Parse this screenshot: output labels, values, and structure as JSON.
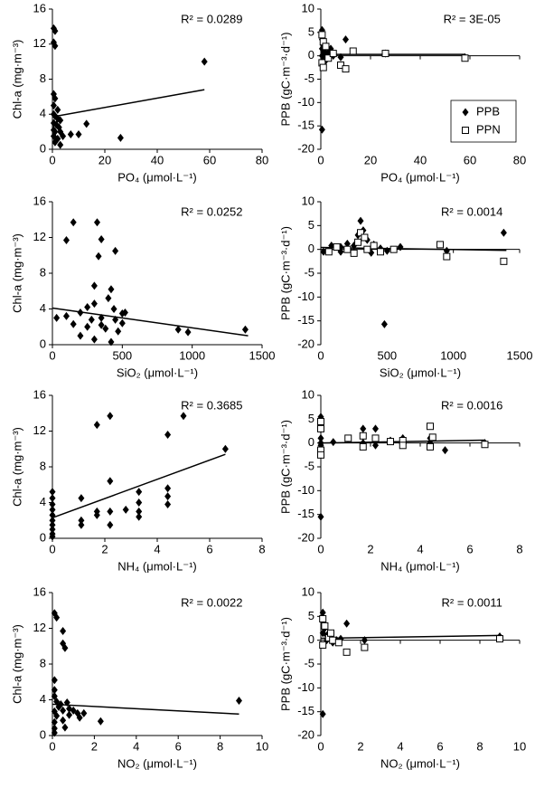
{
  "chart_data": [
    {
      "type": "scatter",
      "ylabel": "Chl-a (mg·m⁻³)",
      "xlabel": "PO₄ (μmol·L⁻¹)",
      "annotation": "R² = 0.0289",
      "xlim": [
        0,
        80
      ],
      "ylim": [
        0,
        16
      ],
      "xticks": [
        0,
        20,
        40,
        60,
        80
      ],
      "yticks": [
        0,
        4,
        8,
        12,
        16
      ],
      "series": [
        {
          "marker": "diamond",
          "color": "#000000",
          "x": [
            0.5,
            1,
            0.5,
            1,
            0.5,
            1,
            0.5,
            2,
            0.5,
            1,
            2,
            3,
            0.5,
            1.5,
            2.5,
            0.5,
            1,
            3,
            0.5,
            2,
            4,
            1,
            3,
            7,
            10,
            13,
            26,
            58
          ],
          "y": [
            13.8,
            13.5,
            12.2,
            11.8,
            6.3,
            5.8,
            5.0,
            4.5,
            4.0,
            3.8,
            3.5,
            3.3,
            3.0,
            2.8,
            2.5,
            2.2,
            2.0,
            2.0,
            1.5,
            1.2,
            1.5,
            0.8,
            0.5,
            1.7,
            1.7,
            2.9,
            1.3,
            10
          ]
        }
      ],
      "trend": {
        "x": [
          0,
          58
        ],
        "y": [
          3.7,
          6.8
        ]
      }
    },
    {
      "type": "scatter",
      "ylabel": "PPB (gC·m⁻³·d⁻¹)",
      "xlabel": "PO₄ (μmol·L⁻¹)",
      "annotation": "R² = 3E-05",
      "xlim": [
        0,
        80
      ],
      "ylim": [
        -20,
        10
      ],
      "xticks": [
        0,
        20,
        40,
        60,
        80
      ],
      "yticks": [
        -20,
        -15,
        -10,
        -5,
        0,
        5,
        10
      ],
      "legend": "lower right",
      "series": [
        {
          "name": "PPB",
          "marker": "diamond",
          "color": "#000000",
          "x": [
            0.5,
            0.5,
            1,
            0.5,
            1,
            2,
            0.5,
            1,
            3,
            4,
            5,
            8,
            10,
            0.5,
            26,
            58,
            2,
            1
          ],
          "y": [
            5.5,
            3.5,
            2.5,
            1.5,
            1,
            0.5,
            0,
            -0.5,
            0.8,
            1.5,
            0,
            -0.3,
            3.5,
            -15.8,
            0.5,
            -0.3,
            -1,
            0.3
          ]
        },
        {
          "name": "PPN",
          "marker": "square",
          "color": "#000000",
          "x": [
            0.5,
            1,
            2,
            0.5,
            3,
            5,
            8,
            10,
            13,
            26,
            58,
            1
          ],
          "y": [
            4.5,
            3,
            2,
            -1.5,
            -0.5,
            0.5,
            -2,
            -2.8,
            1,
            0.5,
            -0.5,
            -2.5
          ]
        }
      ],
      "trend": {
        "x": [
          0,
          58
        ],
        "y": [
          0.3,
          0.3
        ]
      }
    },
    {
      "type": "scatter",
      "ylabel": "Chl-a (mg·m⁻³)",
      "xlabel": "SiO₂ (μmol·L⁻¹)",
      "annotation": "R² = 0.0252",
      "xlim": [
        0,
        1500
      ],
      "ylim": [
        0,
        16
      ],
      "xticks": [
        0,
        500,
        1000,
        1500
      ],
      "yticks": [
        0,
        4,
        8,
        12,
        16
      ],
      "series": [
        {
          "marker": "diamond",
          "color": "#000000",
          "x": [
            150,
            320,
            100,
            350,
            450,
            330,
            300,
            420,
            400,
            300,
            250,
            30,
            100,
            200,
            280,
            350,
            450,
            150,
            250,
            380,
            470,
            200,
            300,
            420,
            500,
            500,
            900,
            970,
            1380,
            350,
            440,
            520
          ],
          "y": [
            13.7,
            13.7,
            11.7,
            11.8,
            10.5,
            9.9,
            6.6,
            6.2,
            5.2,
            4.6,
            4.2,
            3.0,
            3.2,
            3.6,
            2.8,
            3.0,
            2.8,
            2.3,
            2.0,
            1.8,
            1.5,
            1.0,
            0.6,
            0.3,
            2.4,
            3.5,
            1.7,
            1.4,
            1.7,
            2.2,
            4.0,
            3.6
          ]
        }
      ],
      "trend": {
        "x": [
          0,
          1400
        ],
        "y": [
          4.1,
          1.0
        ]
      }
    },
    {
      "type": "scatter",
      "ylabel": "PPB (gC·m⁻³·d⁻¹)",
      "xlabel": "SiO₂ (μmol·L⁻¹)",
      "annotation": "R² = 0.0014",
      "xlim": [
        0,
        1500
      ],
      "ylim": [
        -20,
        10
      ],
      "xticks": [
        0,
        500,
        1000,
        1500
      ],
      "yticks": [
        -20,
        -15,
        -10,
        -5,
        0,
        5,
        10
      ],
      "series": [
        {
          "marker": "diamond",
          "color": "#000000",
          "x": [
            20,
            80,
            150,
            200,
            250,
            280,
            300,
            320,
            350,
            400,
            450,
            500,
            480,
            600,
            950,
            1380,
            150,
            380
          ],
          "y": [
            -0.5,
            0.8,
            0.5,
            1.2,
            0.8,
            3,
            6,
            4,
            2,
            1,
            0.2,
            -0.3,
            -15.7,
            0.5,
            -0.3,
            3.5,
            -0.5,
            -0.7
          ]
        },
        {
          "marker": "square",
          "color": "#000000",
          "x": [
            60,
            120,
            200,
            280,
            300,
            330,
            350,
            400,
            450,
            550,
            900,
            950,
            1380,
            250
          ],
          "y": [
            -0.5,
            0.5,
            0,
            1.5,
            3.5,
            2.5,
            0,
            0.8,
            -0.5,
            0,
            1,
            -1.5,
            -2.5,
            -0.8
          ]
        }
      ],
      "trend": {
        "x": [
          0,
          1400
        ],
        "y": [
          0.4,
          -0.2
        ]
      }
    },
    {
      "type": "scatter",
      "ylabel": "Chl-a (mg·m⁻³)",
      "xlabel": "NH₄ (μmol·L⁻¹)",
      "annotation": "R² = 0.3685",
      "xlim": [
        0,
        8
      ],
      "ylim": [
        0,
        16
      ],
      "xticks": [
        0,
        2,
        4,
        6,
        8
      ],
      "yticks": [
        0,
        4,
        8,
        12,
        16
      ],
      "series": [
        {
          "marker": "diamond",
          "color": "#000000",
          "x": [
            0,
            0,
            0,
            0,
            0,
            0,
            0,
            0,
            0,
            0,
            1.1,
            1.1,
            1.1,
            1.7,
            1.7,
            1.7,
            2.2,
            2.2,
            2.2,
            2.2,
            2.8,
            3.3,
            3.3,
            3.3,
            3.3,
            4.4,
            4.4,
            4.4,
            4.4,
            5.0,
            6.6
          ],
          "y": [
            5.2,
            4.5,
            3.8,
            3.2,
            2.6,
            2.0,
            1.5,
            1.0,
            0.5,
            0.2,
            4.5,
            2.0,
            1.5,
            12.7,
            3.0,
            2.6,
            13.7,
            6.4,
            3.0,
            1.5,
            3.2,
            5.2,
            4.0,
            3.0,
            2.4,
            11.6,
            5.6,
            4.7,
            3.8,
            13.7,
            10.0
          ]
        }
      ],
      "trend": {
        "x": [
          0,
          6.6
        ],
        "y": [
          2.3,
          9.4
        ]
      }
    },
    {
      "type": "scatter",
      "ylabel": "PPB (gC·m⁻³·d⁻¹)",
      "xlabel": "NH₄ (μmol·L⁻¹)",
      "annotation": "R² = 0.0016",
      "xlim": [
        0,
        8
      ],
      "ylim": [
        -20,
        10
      ],
      "xticks": [
        0,
        2,
        4,
        6,
        8
      ],
      "yticks": [
        -20,
        -15,
        -10,
        -5,
        0,
        5,
        10
      ],
      "series": [
        {
          "marker": "diamond",
          "color": "#000000",
          "x": [
            0,
            0,
            0,
            0,
            0,
            0,
            0.5,
            1.1,
            1.7,
            1.7,
            2.2,
            2.2,
            2.8,
            3.3,
            3.3,
            4.4,
            4.4,
            5,
            6.6
          ],
          "y": [
            5.5,
            3,
            1,
            0,
            -0.5,
            -15.5,
            0.2,
            0.8,
            3,
            0,
            3,
            -0.5,
            0.5,
            1,
            0,
            1,
            0,
            -1.5,
            0
          ]
        },
        {
          "marker": "square",
          "color": "#000000",
          "x": [
            0,
            0,
            0,
            0,
            1.1,
            1.7,
            1.7,
            2.2,
            2.8,
            3.3,
            3.3,
            4.4,
            4.4,
            4.5,
            6.6
          ],
          "y": [
            4.5,
            3,
            -1.5,
            -2.5,
            1,
            1.5,
            -0.8,
            1,
            0.3,
            0.5,
            -0.5,
            3.5,
            -0.8,
            1.2,
            -0.3
          ]
        }
      ],
      "trend": {
        "x": [
          0,
          6.6
        ],
        "y": [
          0,
          0.6
        ]
      }
    },
    {
      "type": "scatter",
      "ylabel": "Chl-a (mg·m⁻³)",
      "xlabel": "NO₂ (μmol·L⁻¹)",
      "annotation": "R² = 0.0022",
      "xlim": [
        0,
        10
      ],
      "ylim": [
        0,
        16
      ],
      "xticks": [
        0,
        2,
        4,
        6,
        8,
        10
      ],
      "yticks": [
        0,
        4,
        8,
        12,
        16
      ],
      "series": [
        {
          "marker": "diamond",
          "color": "#000000",
          "x": [
            0.1,
            0.2,
            0.5,
            0.5,
            0.6,
            0.1,
            0.1,
            0.1,
            0.2,
            0.3,
            0.1,
            0.2,
            0.1,
            0.1,
            0.1,
            0.4,
            0.5,
            0.5,
            0.6,
            0.7,
            0.8,
            0.8,
            1,
            1.2,
            1.3,
            1.5,
            2.3,
            8.9
          ],
          "y": [
            13.7,
            13.2,
            11.7,
            10.3,
            9.8,
            6.2,
            5.1,
            4.4,
            3.8,
            3.2,
            2.7,
            2.2,
            1.5,
            0.8,
            0.3,
            3.5,
            2.8,
            1.7,
            0.9,
            3.7,
            3.0,
            2.3,
            2.8,
            2.5,
            2.0,
            2.5,
            1.6,
            3.9
          ]
        }
      ],
      "trend": {
        "x": [
          0,
          8.9
        ],
        "y": [
          3.5,
          2.4
        ]
      }
    },
    {
      "type": "scatter",
      "ylabel": "PPB (gC·m⁻³·d⁻¹)",
      "xlabel": "NO₂ (μmol·L⁻¹)",
      "annotation": "R² = 0.0011",
      "xlim": [
        0,
        10
      ],
      "ylim": [
        -20,
        10
      ],
      "xticks": [
        0,
        2,
        4,
        6,
        8,
        10
      ],
      "yticks": [
        -20,
        -15,
        -10,
        -5,
        0,
        5,
        10
      ],
      "series": [
        {
          "marker": "diamond",
          "color": "#000000",
          "x": [
            0.1,
            0.1,
            0.2,
            0.1,
            0.3,
            0.3,
            0.5,
            0.8,
            1,
            1.3,
            2.2,
            0.1,
            9,
            0.6
          ],
          "y": [
            5.8,
            4,
            2.5,
            1.5,
            1,
            0,
            0.5,
            0,
            0.3,
            3.5,
            0,
            -15.5,
            0.8,
            -0.5
          ]
        },
        {
          "marker": "square",
          "color": "#000000",
          "x": [
            0.1,
            0.2,
            0.1,
            0.4,
            0.6,
            0.9,
            1.3,
            2.2,
            9,
            0.5
          ],
          "y": [
            4.5,
            3,
            -1,
            0.5,
            0,
            -0.5,
            -2.5,
            -1.5,
            0.3,
            1.5
          ]
        }
      ],
      "trend": {
        "x": [
          0,
          9
        ],
        "y": [
          0.4,
          1
        ]
      }
    }
  ]
}
